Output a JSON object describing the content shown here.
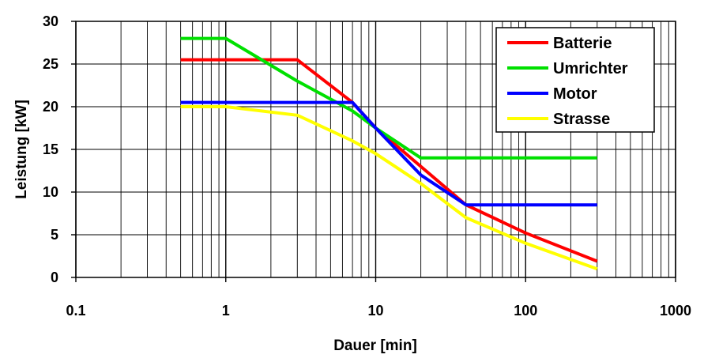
{
  "chart_data": {
    "type": "line",
    "xlabel": "Dauer [min]",
    "ylabel": "Leistung [kW]",
    "xscale": "log",
    "xlim": [
      0.1,
      1000
    ],
    "ylim": [
      0,
      30
    ],
    "x_ticks": [
      "0.1",
      "1",
      "10",
      "100",
      "1000"
    ],
    "y_ticks": [
      "0",
      "5",
      "10",
      "15",
      "20",
      "25",
      "30"
    ],
    "grid": true,
    "legend_position": "top-right",
    "series": [
      {
        "name": "Batterie",
        "color": "#ff0000",
        "points": [
          [
            0.5,
            25.5
          ],
          [
            3,
            25.5
          ],
          [
            7,
            20.5
          ],
          [
            10,
            17.5
          ],
          [
            20,
            13
          ],
          [
            40,
            8.5
          ],
          [
            100,
            5.2
          ],
          [
            300,
            1.9
          ]
        ]
      },
      {
        "name": "Umrichter",
        "color": "#00e000",
        "points": [
          [
            0.5,
            28
          ],
          [
            1,
            28
          ],
          [
            3,
            23
          ],
          [
            7,
            19.5
          ],
          [
            10,
            17.5
          ],
          [
            20,
            14
          ],
          [
            300,
            14
          ]
        ]
      },
      {
        "name": "Motor",
        "color": "#0000ff",
        "points": [
          [
            0.5,
            20.5
          ],
          [
            3,
            20.5
          ],
          [
            7,
            20.5
          ],
          [
            10,
            17.5
          ],
          [
            20,
            12
          ],
          [
            40,
            8.5
          ],
          [
            300,
            8.5
          ]
        ]
      },
      {
        "name": "Strasse",
        "color": "#ffff00",
        "points": [
          [
            0.5,
            20
          ],
          [
            1,
            20
          ],
          [
            3,
            19
          ],
          [
            7,
            16
          ],
          [
            10,
            14.5
          ],
          [
            20,
            11
          ],
          [
            40,
            7
          ],
          [
            100,
            4
          ],
          [
            300,
            1
          ]
        ]
      }
    ]
  }
}
